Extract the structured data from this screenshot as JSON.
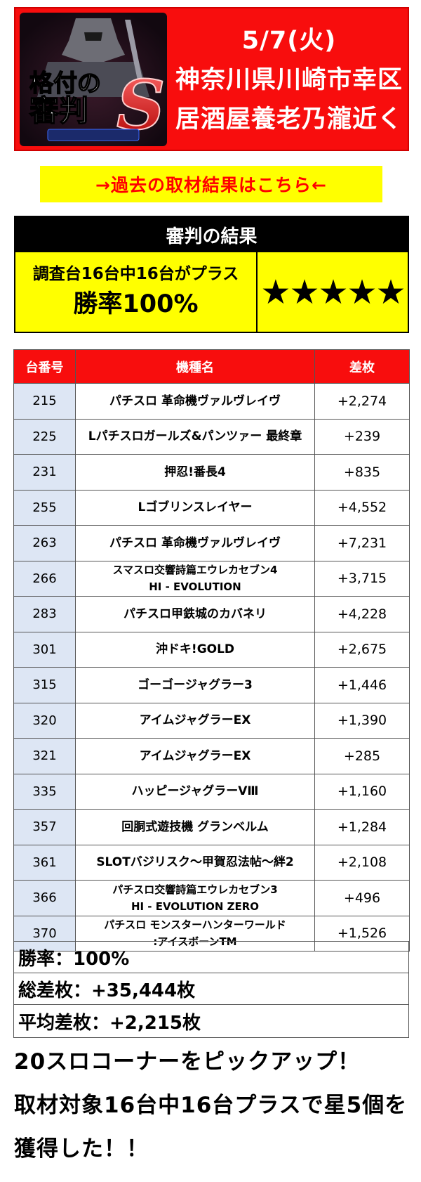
{
  "banner": {
    "logo_text_top": "格付の",
    "logo_text_bottom": "審判",
    "logo_letter": "S",
    "date": "5/7(火)",
    "location_line1": "神奈川県川崎市幸区",
    "location_line2": "居酒屋養老乃瀧近く",
    "colors": {
      "background": "#f80d0d",
      "text": "#ffffff"
    }
  },
  "past_link": {
    "label": "→過去の取材結果はこちら←",
    "colors": {
      "background": "#ffff00",
      "text": "#ff0000"
    }
  },
  "result": {
    "title": "審判の結果",
    "summary_line": "調査台16台中16台がプラス",
    "win_rate": "勝率100%",
    "stars": "★★★★★"
  },
  "table": {
    "headers": {
      "number": "台番号",
      "machine": "機種名",
      "diff": "差枚"
    },
    "rows": [
      {
        "number": "215",
        "name1": "パチスロ 革命機ヴァルヴレイヴ",
        "name2": "",
        "diff": "+2,274"
      },
      {
        "number": "225",
        "name1": "Lパチスロガールズ&パンツァー 最終章",
        "name2": "",
        "diff": "+239"
      },
      {
        "number": "231",
        "name1": "押忍!番長4",
        "name2": "",
        "diff": "+835"
      },
      {
        "number": "255",
        "name1": "Lゴブリンスレイヤー",
        "name2": "",
        "diff": "+4,552"
      },
      {
        "number": "263",
        "name1": "パチスロ 革命機ヴァルヴレイヴ",
        "name2": "",
        "diff": "+7,231"
      },
      {
        "number": "266",
        "name1": "スマスロ交響詩篇エウレカセブン4",
        "name2": "HI - EVOLUTION",
        "diff": "+3,715"
      },
      {
        "number": "283",
        "name1": "パチスロ甲鉄城のカバネリ",
        "name2": "",
        "diff": "+4,228"
      },
      {
        "number": "301",
        "name1": "沖ドキ!GOLD",
        "name2": "",
        "diff": "+2,675"
      },
      {
        "number": "315",
        "name1": "ゴーゴージャグラー3",
        "name2": "",
        "diff": "+1,446"
      },
      {
        "number": "320",
        "name1": "アイムジャグラーEX",
        "name2": "",
        "diff": "+1,390"
      },
      {
        "number": "321",
        "name1": "アイムジャグラーEX",
        "name2": "",
        "diff": "+285"
      },
      {
        "number": "335",
        "name1": "ハッピージャグラーVⅢ",
        "name2": "",
        "diff": "+1,160"
      },
      {
        "number": "357",
        "name1": "回胴式遊技機 グランベルム",
        "name2": "",
        "diff": "+1,284"
      },
      {
        "number": "361",
        "name1": "SLOTバジリスク～甲賀忍法帖～絆2",
        "name2": "",
        "diff": "+2,108"
      },
      {
        "number": "366",
        "name1": "パチスロ交響詩篇エウレカセブン3",
        "name2": "HI - EVOLUTION ZERO",
        "diff": "+496"
      },
      {
        "number": "370",
        "name1": "パチスロ モンスターハンターワールド",
        "name2": ":アイスボーンTM",
        "diff": "+1,526"
      }
    ]
  },
  "summary": {
    "win_rate": "勝率：100%",
    "total_diff": "総差枚：+35,444枚",
    "avg_diff": "平均差枚：+2,215枚"
  },
  "footer": {
    "line1": "20スロコーナーをピックアップ！",
    "line2": "取材対象16台中16台プラスで星5個を",
    "line3": "獲得した！！"
  }
}
